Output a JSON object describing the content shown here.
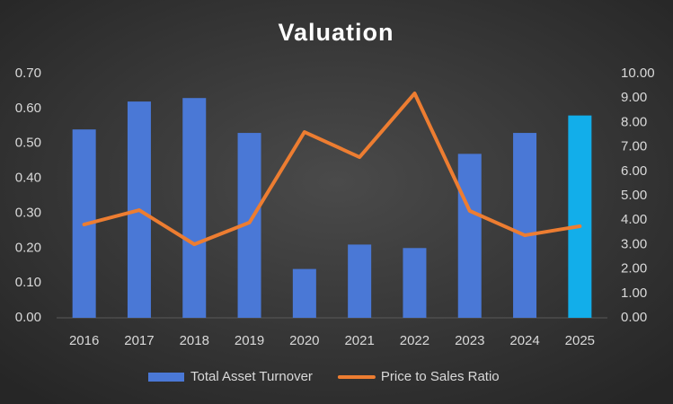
{
  "chart_data": {
    "type": "bar",
    "title": "Valuation",
    "categories": [
      "2016",
      "2017",
      "2018",
      "2019",
      "2020",
      "2021",
      "2022",
      "2023",
      "2024",
      "2025"
    ],
    "series": [
      {
        "name": "Total Asset Turnover",
        "type": "bar",
        "color": "#4a78d6",
        "colors": [
          "#4a78d6",
          "#4a78d6",
          "#4a78d6",
          "#4a78d6",
          "#4a78d6",
          "#4a78d6",
          "#4a78d6",
          "#4a78d6",
          "#4a78d6",
          "#12aeea"
        ],
        "values": [
          0.54,
          0.62,
          0.63,
          0.53,
          0.14,
          0.21,
          0.2,
          0.47,
          0.53,
          0.58
        ]
      },
      {
        "name": "Price to Sales Ratio",
        "type": "line",
        "axis": "y2",
        "color": "#ed7d31",
        "values": [
          3.82,
          4.41,
          3.01,
          3.9,
          7.61,
          6.58,
          9.19,
          4.38,
          3.38,
          3.75
        ]
      }
    ],
    "ylim": [
      0,
      0.7
    ],
    "yticks": [
      {
        "value": 0,
        "label": "0.00"
      },
      {
        "value": 0.1,
        "label": "0.10"
      },
      {
        "value": 0.2,
        "label": "0.20"
      },
      {
        "value": 0.3,
        "label": "0.30"
      },
      {
        "value": 0.4,
        "label": "0.40"
      },
      {
        "value": 0.5,
        "label": "0.50"
      },
      {
        "value": 0.6,
        "label": "0.60"
      },
      {
        "value": 0.7,
        "label": "0.70"
      }
    ],
    "y2lim": [
      0,
      10
    ],
    "y2ticks": [
      {
        "value": 0,
        "label": "0.00"
      },
      {
        "value": 1,
        "label": "1.00"
      },
      {
        "value": 2,
        "label": "2.00"
      },
      {
        "value": 3,
        "label": "3.00"
      },
      {
        "value": 4,
        "label": "4.00"
      },
      {
        "value": 5,
        "label": "5.00"
      },
      {
        "value": 6,
        "label": "6.00"
      },
      {
        "value": 7,
        "label": "7.00"
      },
      {
        "value": 8,
        "label": "8.00"
      },
      {
        "value": 9,
        "label": "9.00"
      },
      {
        "value": 10,
        "label": "10.00"
      }
    ],
    "grid": false,
    "legend": "bottom"
  }
}
